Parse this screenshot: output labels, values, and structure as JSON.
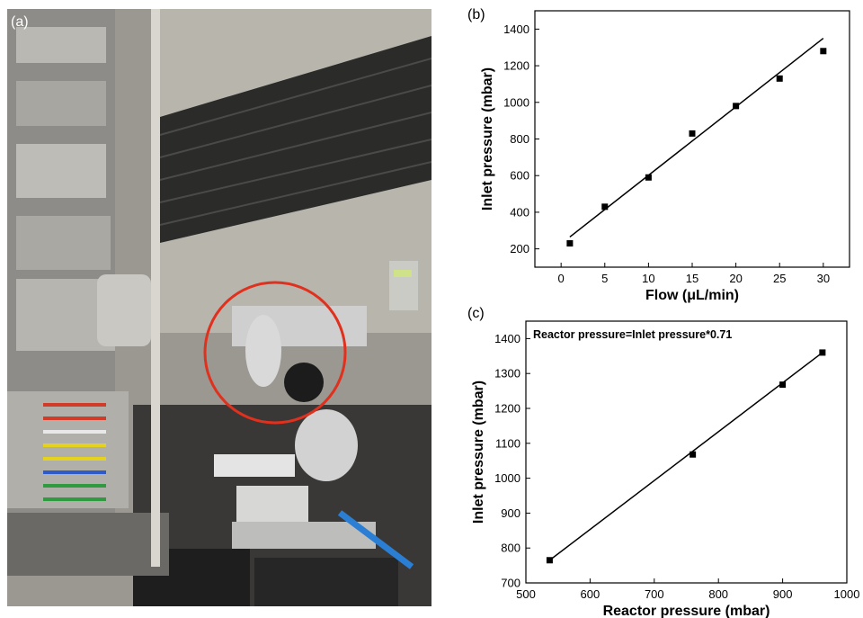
{
  "panel_labels": {
    "a": "(a)",
    "b": "(b)",
    "c": "(c)"
  },
  "chart_data": [
    {
      "id": "b",
      "type": "scatter",
      "xlabel": "Flow (μL/min)",
      "ylabel": "Inlet pressure (mbar)",
      "xlim": [
        -3,
        33
      ],
      "ylim": [
        100,
        1500
      ],
      "xticks": [
        0,
        5,
        10,
        15,
        20,
        25,
        30
      ],
      "yticks": [
        200,
        400,
        600,
        800,
        1000,
        1200,
        1400
      ],
      "points": {
        "x": [
          1,
          5,
          10,
          15,
          20,
          25,
          30
        ],
        "y": [
          230,
          430,
          590,
          830,
          980,
          1130,
          1280
        ]
      },
      "fit_line": {
        "x": [
          1,
          30
        ],
        "y": [
          265,
          1350
        ]
      },
      "grid": false
    },
    {
      "id": "c",
      "type": "scatter",
      "annotation": "Reactor pressure=Inlet pressure*0.71",
      "xlabel": "Reactor pressure (mbar)",
      "ylabel": "Inlet pressure (mbar)",
      "xlim": [
        500,
        1000
      ],
      "ylim": [
        700,
        1450
      ],
      "xticks": [
        500,
        600,
        700,
        800,
        900,
        1000
      ],
      "yticks": [
        700,
        800,
        900,
        1000,
        1100,
        1200,
        1300,
        1400
      ],
      "points": {
        "x": [
          537,
          760,
          900,
          962
        ],
        "y": [
          765,
          1068,
          1268,
          1360
        ]
      },
      "fit_line": {
        "x": [
          537,
          962
        ],
        "y": [
          765,
          1360
        ]
      },
      "grid": false
    }
  ],
  "colors": {
    "axis": "#000000",
    "marker": "#000000",
    "line": "#000000"
  }
}
